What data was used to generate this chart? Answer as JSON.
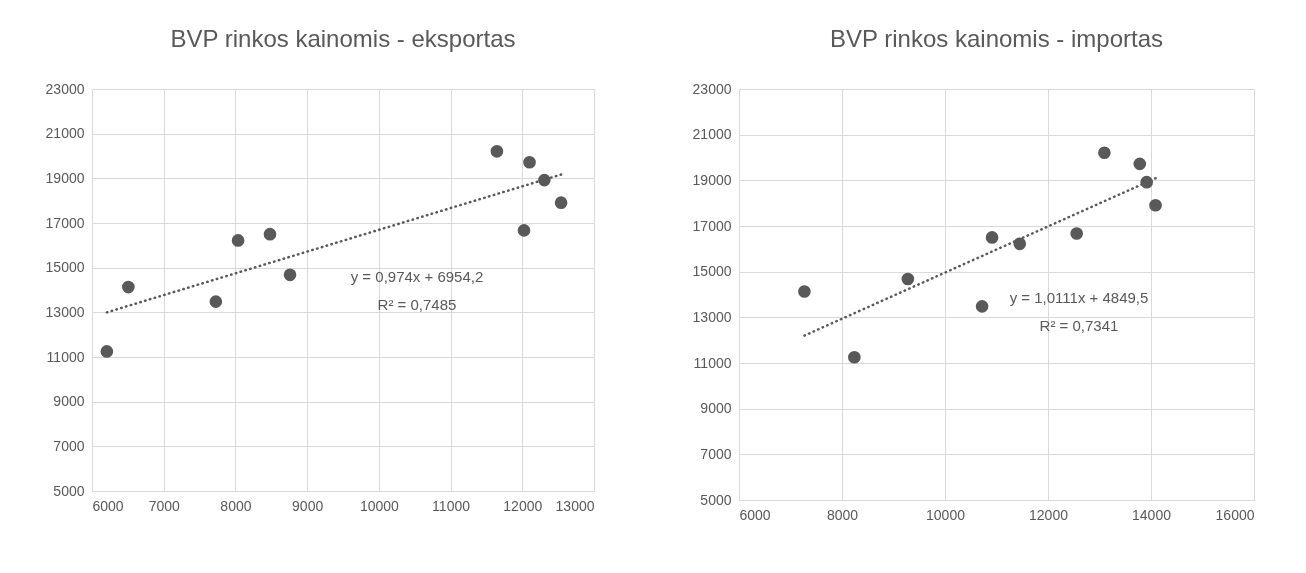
{
  "chart_data": [
    {
      "type": "scatter",
      "title": "BVP rinkos kainomis - eksportas",
      "xlim": [
        6000,
        13000
      ],
      "xticks": [
        6000,
        7000,
        8000,
        9000,
        10000,
        11000,
        12000,
        13000
      ],
      "ylim": [
        5000,
        23000
      ],
      "yticks": [
        5000,
        7000,
        9000,
        11000,
        13000,
        15000,
        17000,
        19000,
        21000,
        23000
      ],
      "grid": true,
      "annotations": [
        "y = 0,974x + 6954,2",
        "R² = 0,7485"
      ],
      "series": [
        {
          "marker": "circle",
          "color": "#595959",
          "x": [
            6207,
            6507,
            7727,
            8037,
            8482,
            8761,
            11646,
            12101,
            12308,
            12541,
            12024
          ],
          "values": [
            11250,
            14130,
            13480,
            16220,
            16500,
            14680,
            20210,
            19720,
            18920,
            17910,
            16670
          ]
        },
        {
          "type": "line",
          "color": "#595959",
          "line_style": "dotted",
          "x": [
            6207,
            12541
          ],
          "values": [
            13000,
            19170
          ]
        }
      ]
    },
    {
      "type": "scatter",
      "title": "BVP rinkos kainomis - importas",
      "xlim": [
        6000,
        16000
      ],
      "xticks": [
        6000,
        8000,
        10000,
        12000,
        14000,
        16000
      ],
      "ylim": [
        5000,
        23000
      ],
      "yticks": [
        5000,
        7000,
        9000,
        11000,
        13000,
        15000,
        17000,
        19000,
        21000,
        23000
      ],
      "grid": true,
      "annotations": [
        "y = 1,0111x + 4849,5",
        "R² = 0,7341"
      ],
      "series": [
        {
          "marker": "circle",
          "color": "#595959",
          "x": [
            7270,
            8240,
            9279,
            10720,
            10914,
            11452,
            12557,
            13095,
            13782,
            13916,
            14088
          ],
          "values": [
            14130,
            11250,
            14680,
            13480,
            16500,
            16220,
            16670,
            20210,
            19720,
            18920,
            17910
          ]
        },
        {
          "type": "line",
          "color": "#595959",
          "line_style": "dotted",
          "x": [
            7270,
            14088
          ],
          "values": [
            12200,
            19090
          ]
        }
      ]
    }
  ]
}
